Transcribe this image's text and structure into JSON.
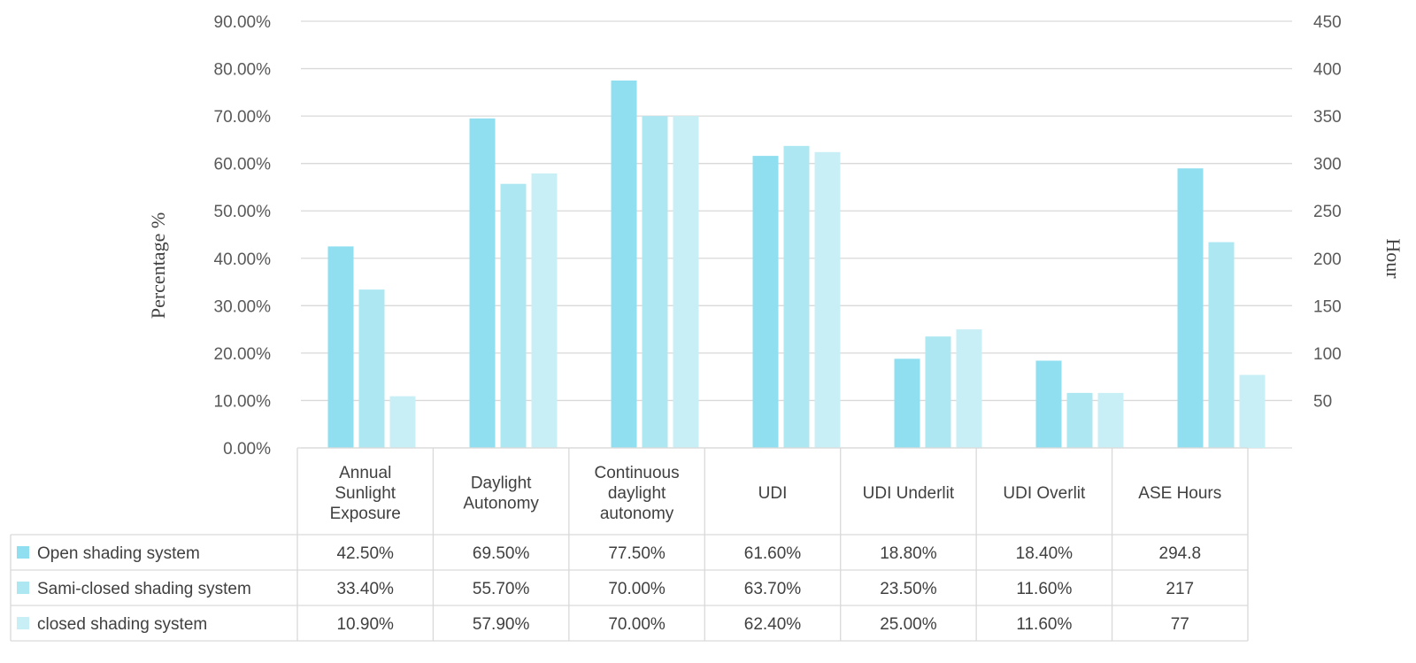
{
  "chart_data": {
    "type": "bar",
    "categories": [
      [
        "Annual",
        "Sunlight",
        "Exposure"
      ],
      [
        "Daylight",
        "Autonomy"
      ],
      [
        "Continuous",
        "daylight",
        "autonomy"
      ],
      [
        "UDI"
      ],
      [
        "UDI Underlit"
      ],
      [
        "UDI Overlit"
      ],
      [
        "ASE Hours"
      ]
    ],
    "ylabel": "Percentage %",
    "y2label": "Hour",
    "ylim": [
      0,
      90
    ],
    "y2lim": [
      0,
      450
    ],
    "yticks": [
      "0.00%",
      "10.00%",
      "20.00%",
      "30.00%",
      "40.00%",
      "50.00%",
      "60.00%",
      "70.00%",
      "80.00%",
      "90.00%"
    ],
    "y2ticks": [
      "50",
      "100",
      "150",
      "200",
      "250",
      "300",
      "350",
      "400",
      "450"
    ],
    "secondary_axis_categories": [
      "ASE Hours"
    ],
    "grid": true,
    "legend_placement": "data-table",
    "series": [
      {
        "name": "Open shading system",
        "color": "#8fdff0",
        "values": [
          42.5,
          69.5,
          77.5,
          61.6,
          18.8,
          18.4,
          294.8
        ],
        "labels": [
          "42.50%",
          "69.50%",
          "77.50%",
          "61.60%",
          "18.80%",
          "18.40%",
          "294.8"
        ]
      },
      {
        "name": "Sami-closed shading system",
        "color": "#ace7f2",
        "values": [
          33.4,
          55.7,
          70.0,
          63.7,
          23.5,
          11.6,
          217
        ],
        "labels": [
          "33.40%",
          "55.70%",
          "70.00%",
          "63.70%",
          "23.50%",
          "11.60%",
          "217"
        ]
      },
      {
        "name": "closed shading system",
        "color": "#c8eff6",
        "values": [
          10.9,
          57.9,
          70.0,
          62.4,
          25.0,
          11.6,
          77
        ],
        "labels": [
          "10.90%",
          "57.90%",
          "70.00%",
          "62.40%",
          "25.00%",
          "11.60%",
          "77"
        ]
      }
    ]
  }
}
